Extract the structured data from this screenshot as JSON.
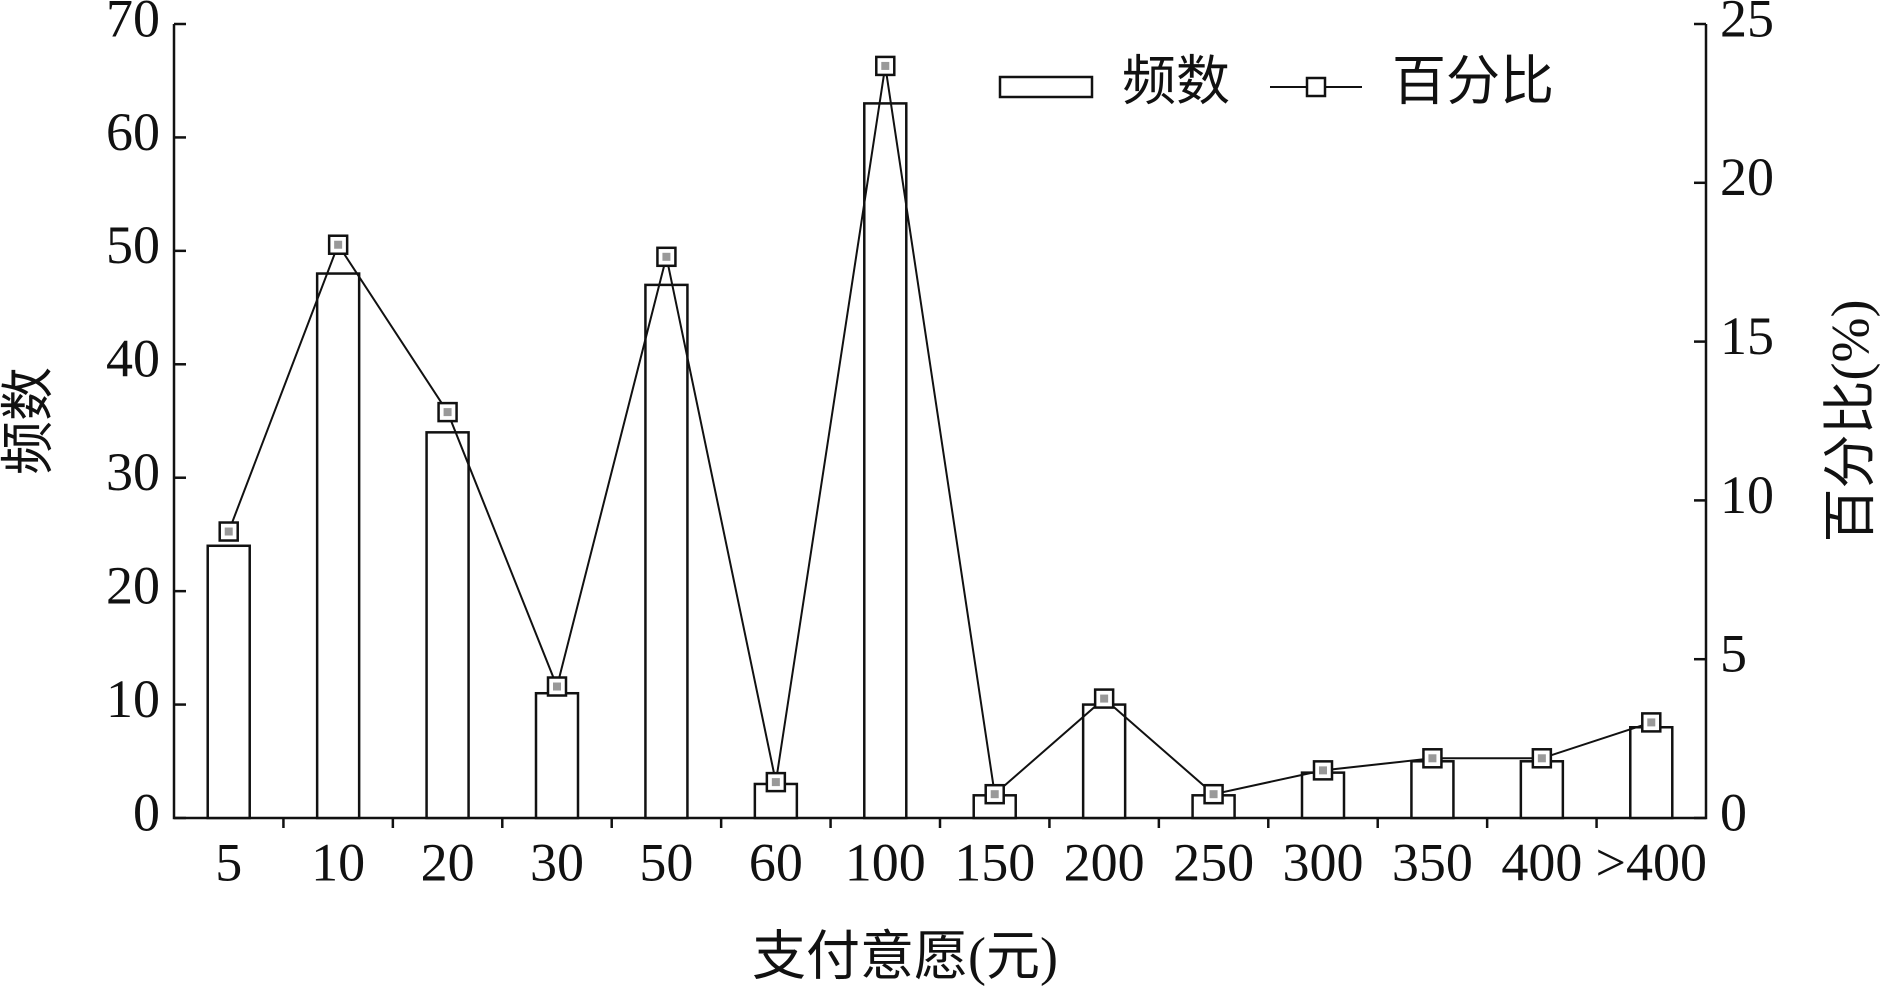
{
  "chart_data": {
    "type": "bar",
    "x_label": "支付意愿(元)",
    "y_label": "频数",
    "y2_label": "百分比(%)",
    "categories": [
      "5",
      "10",
      "20",
      "30",
      "50",
      "60",
      "100",
      "150",
      "200",
      "250",
      "300",
      "350",
      "400",
      ">400"
    ],
    "series": [
      {
        "name": "频数",
        "type": "bar",
        "color": "#ffffff",
        "values": [
          24,
          48,
          34,
          11,
          47,
          3,
          63,
          2,
          10,
          2,
          4,
          5,
          5,
          8
        ]
      },
      {
        "name": "百分比",
        "type": "line",
        "axis": "y2",
        "color": "#111111",
        "values": [
          9.02,
          18.05,
          12.78,
          4.14,
          17.67,
          1.13,
          23.68,
          0.75,
          3.76,
          0.75,
          1.5,
          1.88,
          1.88,
          3.01
        ]
      }
    ],
    "ylim": [
      0,
      70
    ],
    "yticks": [
      0,
      10,
      20,
      30,
      40,
      50,
      60,
      70
    ],
    "y2lim": [
      0,
      25
    ],
    "y2ticks": [
      0,
      5,
      10,
      15,
      20,
      25
    ],
    "legend": "upper right",
    "grid": false
  }
}
